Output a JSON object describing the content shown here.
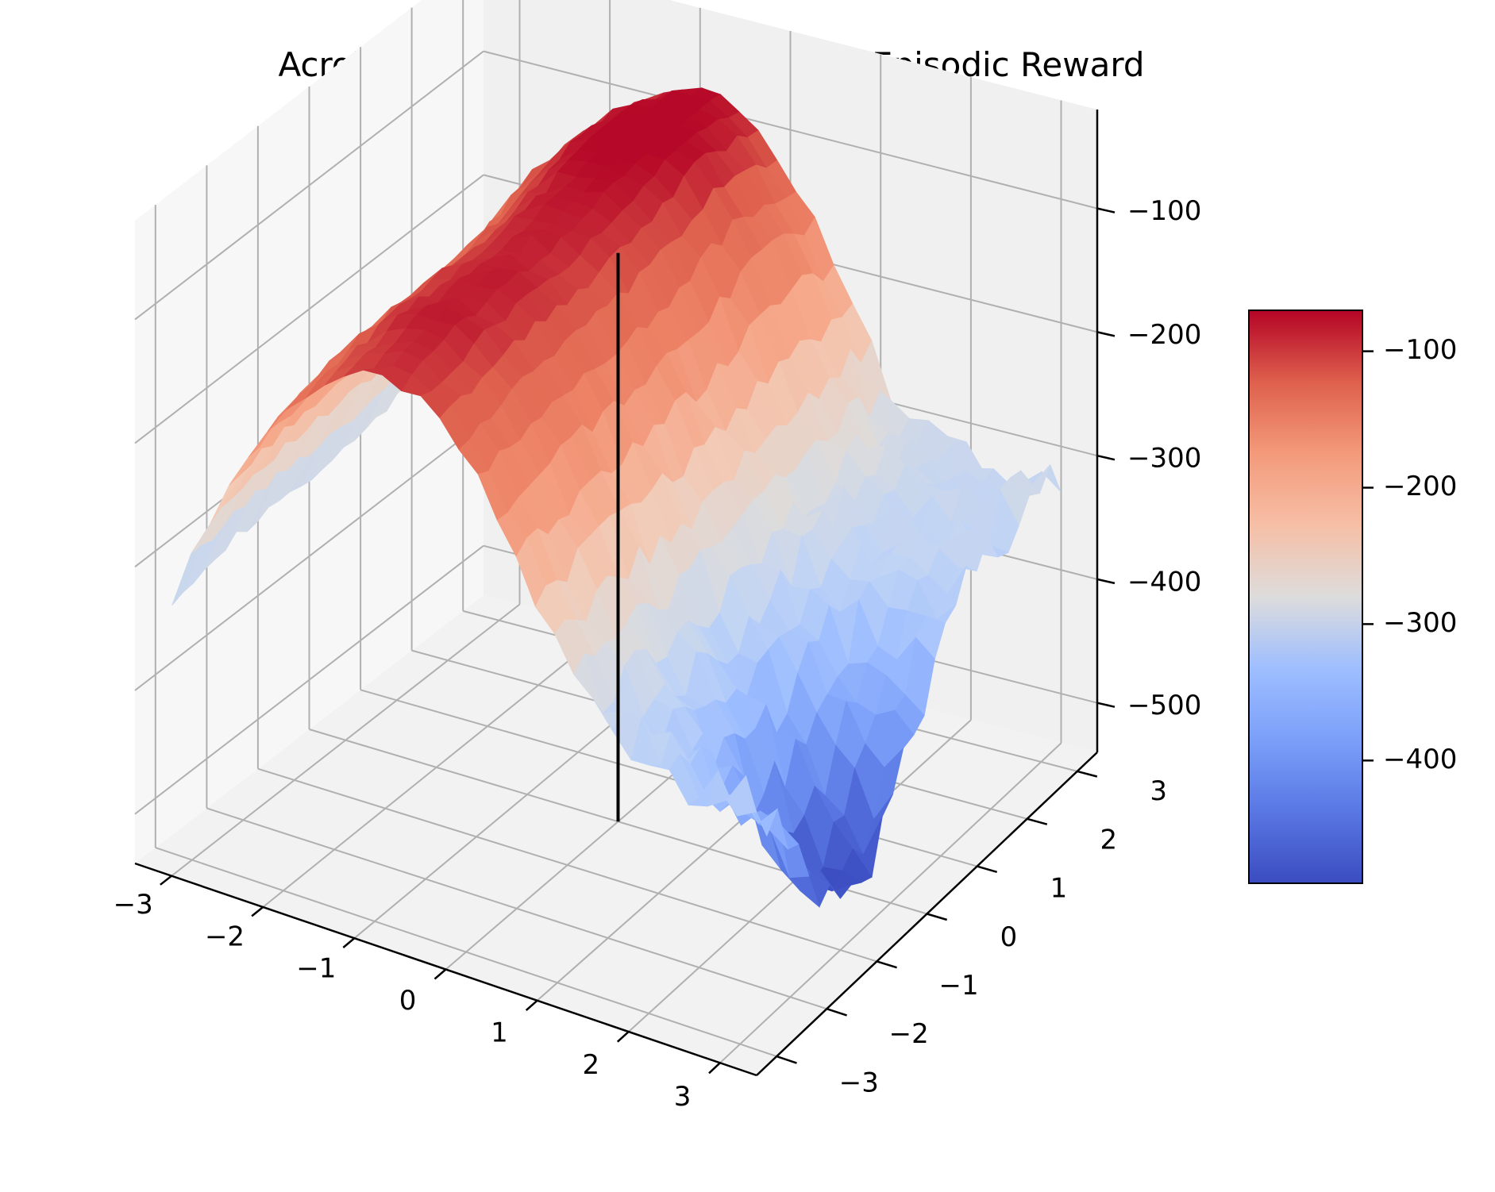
{
  "chart_data": {
    "type": "surface",
    "title": "Acrobot-v1 | Classic Control | Mean Episodic Reward",
    "xlabel": "",
    "ylabel": "",
    "zlabel": "",
    "x_ticks": [
      "−3",
      "−2",
      "−1",
      "0",
      "1",
      "2",
      "3"
    ],
    "y_ticks": [
      "−3",
      "−2",
      "−1",
      "0",
      "1",
      "2",
      "3"
    ],
    "z_ticks": [
      "−500",
      "−400",
      "−300",
      "−200",
      "−100"
    ],
    "colorbar_ticks": [
      "−400",
      "−300",
      "−200",
      "−100"
    ],
    "xlim": [
      -3.4,
      3.4
    ],
    "ylim": [
      -3.4,
      3.4
    ],
    "zlim": [
      -540,
      -20
    ],
    "colormap": "coolwarm",
    "color_range": [
      -490,
      -70
    ],
    "grid": true,
    "surface_summary": {
      "max_reward": -75,
      "max_region": "x around -1 to 0, y around 1 to 3",
      "min_reward": -490,
      "min_region": "x around 3, y around -1",
      "edge_value_x_-3": -300
    },
    "marker_line": {
      "x": 0,
      "y": 0,
      "z_range": [
        -540,
        -80
      ],
      "color": "#000000"
    }
  }
}
